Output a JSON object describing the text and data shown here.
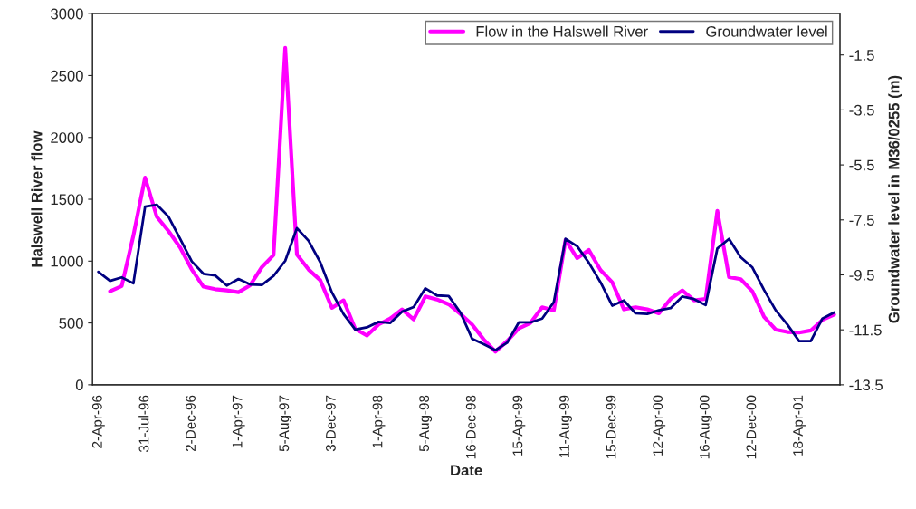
{
  "chart_data": {
    "type": "line",
    "xlabel": "Date",
    "ylabel": "Halswell River flow",
    "y2label": "Groundwater level in M36/0255 (m)",
    "categories": [
      "2-Apr-96",
      null,
      null,
      null,
      "31-Jul-96",
      null,
      null,
      null,
      "2-Dec-96",
      null,
      null,
      null,
      "1-Apr-97",
      null,
      null,
      null,
      "5-Aug-97",
      null,
      null,
      null,
      "3-Dec-97",
      null,
      null,
      null,
      "1-Apr-98",
      null,
      null,
      null,
      "5-Aug-98",
      null,
      null,
      null,
      "16-Dec-98",
      null,
      null,
      null,
      "15-Apr-99",
      null,
      null,
      null,
      "11-Aug-99",
      null,
      null,
      null,
      "15-Dec-99",
      null,
      null,
      null,
      "12-Apr-00",
      null,
      null,
      null,
      "16-Aug-00",
      null,
      null,
      null,
      "12-Dec-00",
      null,
      null,
      null,
      "18-Apr-01",
      null,
      null,
      null
    ],
    "series": [
      {
        "name": "Flow in the Halswell River",
        "color": "#ff00ff",
        "values": [
          null,
          756,
          798,
          1207,
          1676,
          1359,
          1244,
          1110,
          932,
          793,
          773,
          763,
          749,
          805,
          951,
          1049,
          2724,
          1054,
          932,
          846,
          622,
          683,
          451,
          398,
          488,
          537,
          610,
          529,
          715,
          690,
          651,
          573,
          488,
          366,
          268,
          353,
          456,
          500,
          627,
          602,
          1171,
          1024,
          1090,
          927,
          829,
          610,
          627,
          610,
          578,
          695,
          763,
          683,
          695,
          1407,
          871,
          854,
          756,
          549,
          446,
          427,
          422,
          439,
          525,
          568
        ]
      },
      {
        "name": "Groundwater level",
        "color": "#000080",
        "axis": "y2",
        "values": [
          -9.39,
          -9.72,
          -9.59,
          -9.81,
          -7.02,
          -6.95,
          -7.38,
          -8.19,
          -9.01,
          -9.46,
          -9.52,
          -9.89,
          -9.65,
          -9.85,
          -9.87,
          -9.54,
          -8.99,
          -7.8,
          -8.26,
          -9.04,
          -10.14,
          -10.93,
          -11.49,
          -11.41,
          -11.21,
          -11.25,
          -10.84,
          -10.67,
          -9.99,
          -10.25,
          -10.27,
          -10.87,
          -11.82,
          -12.02,
          -12.24,
          -11.97,
          -11.23,
          -11.23,
          -11.09,
          -10.49,
          -8.19,
          -8.46,
          -9.06,
          -9.77,
          -10.62,
          -10.43,
          -10.9,
          -10.92,
          -10.79,
          -10.71,
          -10.29,
          -10.38,
          -10.6,
          -8.54,
          -8.19,
          -8.86,
          -9.23,
          -10.05,
          -10.79,
          -11.31,
          -11.91,
          -11.91,
          -11.09,
          -10.87
        ]
      }
    ],
    "ylim": [
      0,
      3000
    ],
    "yticks": [
      0,
      500,
      1000,
      1500,
      2000,
      2500,
      3000
    ],
    "y2lim": [
      -13.5,
      0
    ],
    "y2ticks": [
      -13.5,
      -11.5,
      -9.5,
      -7.5,
      -5.5,
      -3.5,
      -1.5
    ],
    "legend": "top right",
    "grid": false,
    "marker": "none",
    "line_style": "solid"
  }
}
